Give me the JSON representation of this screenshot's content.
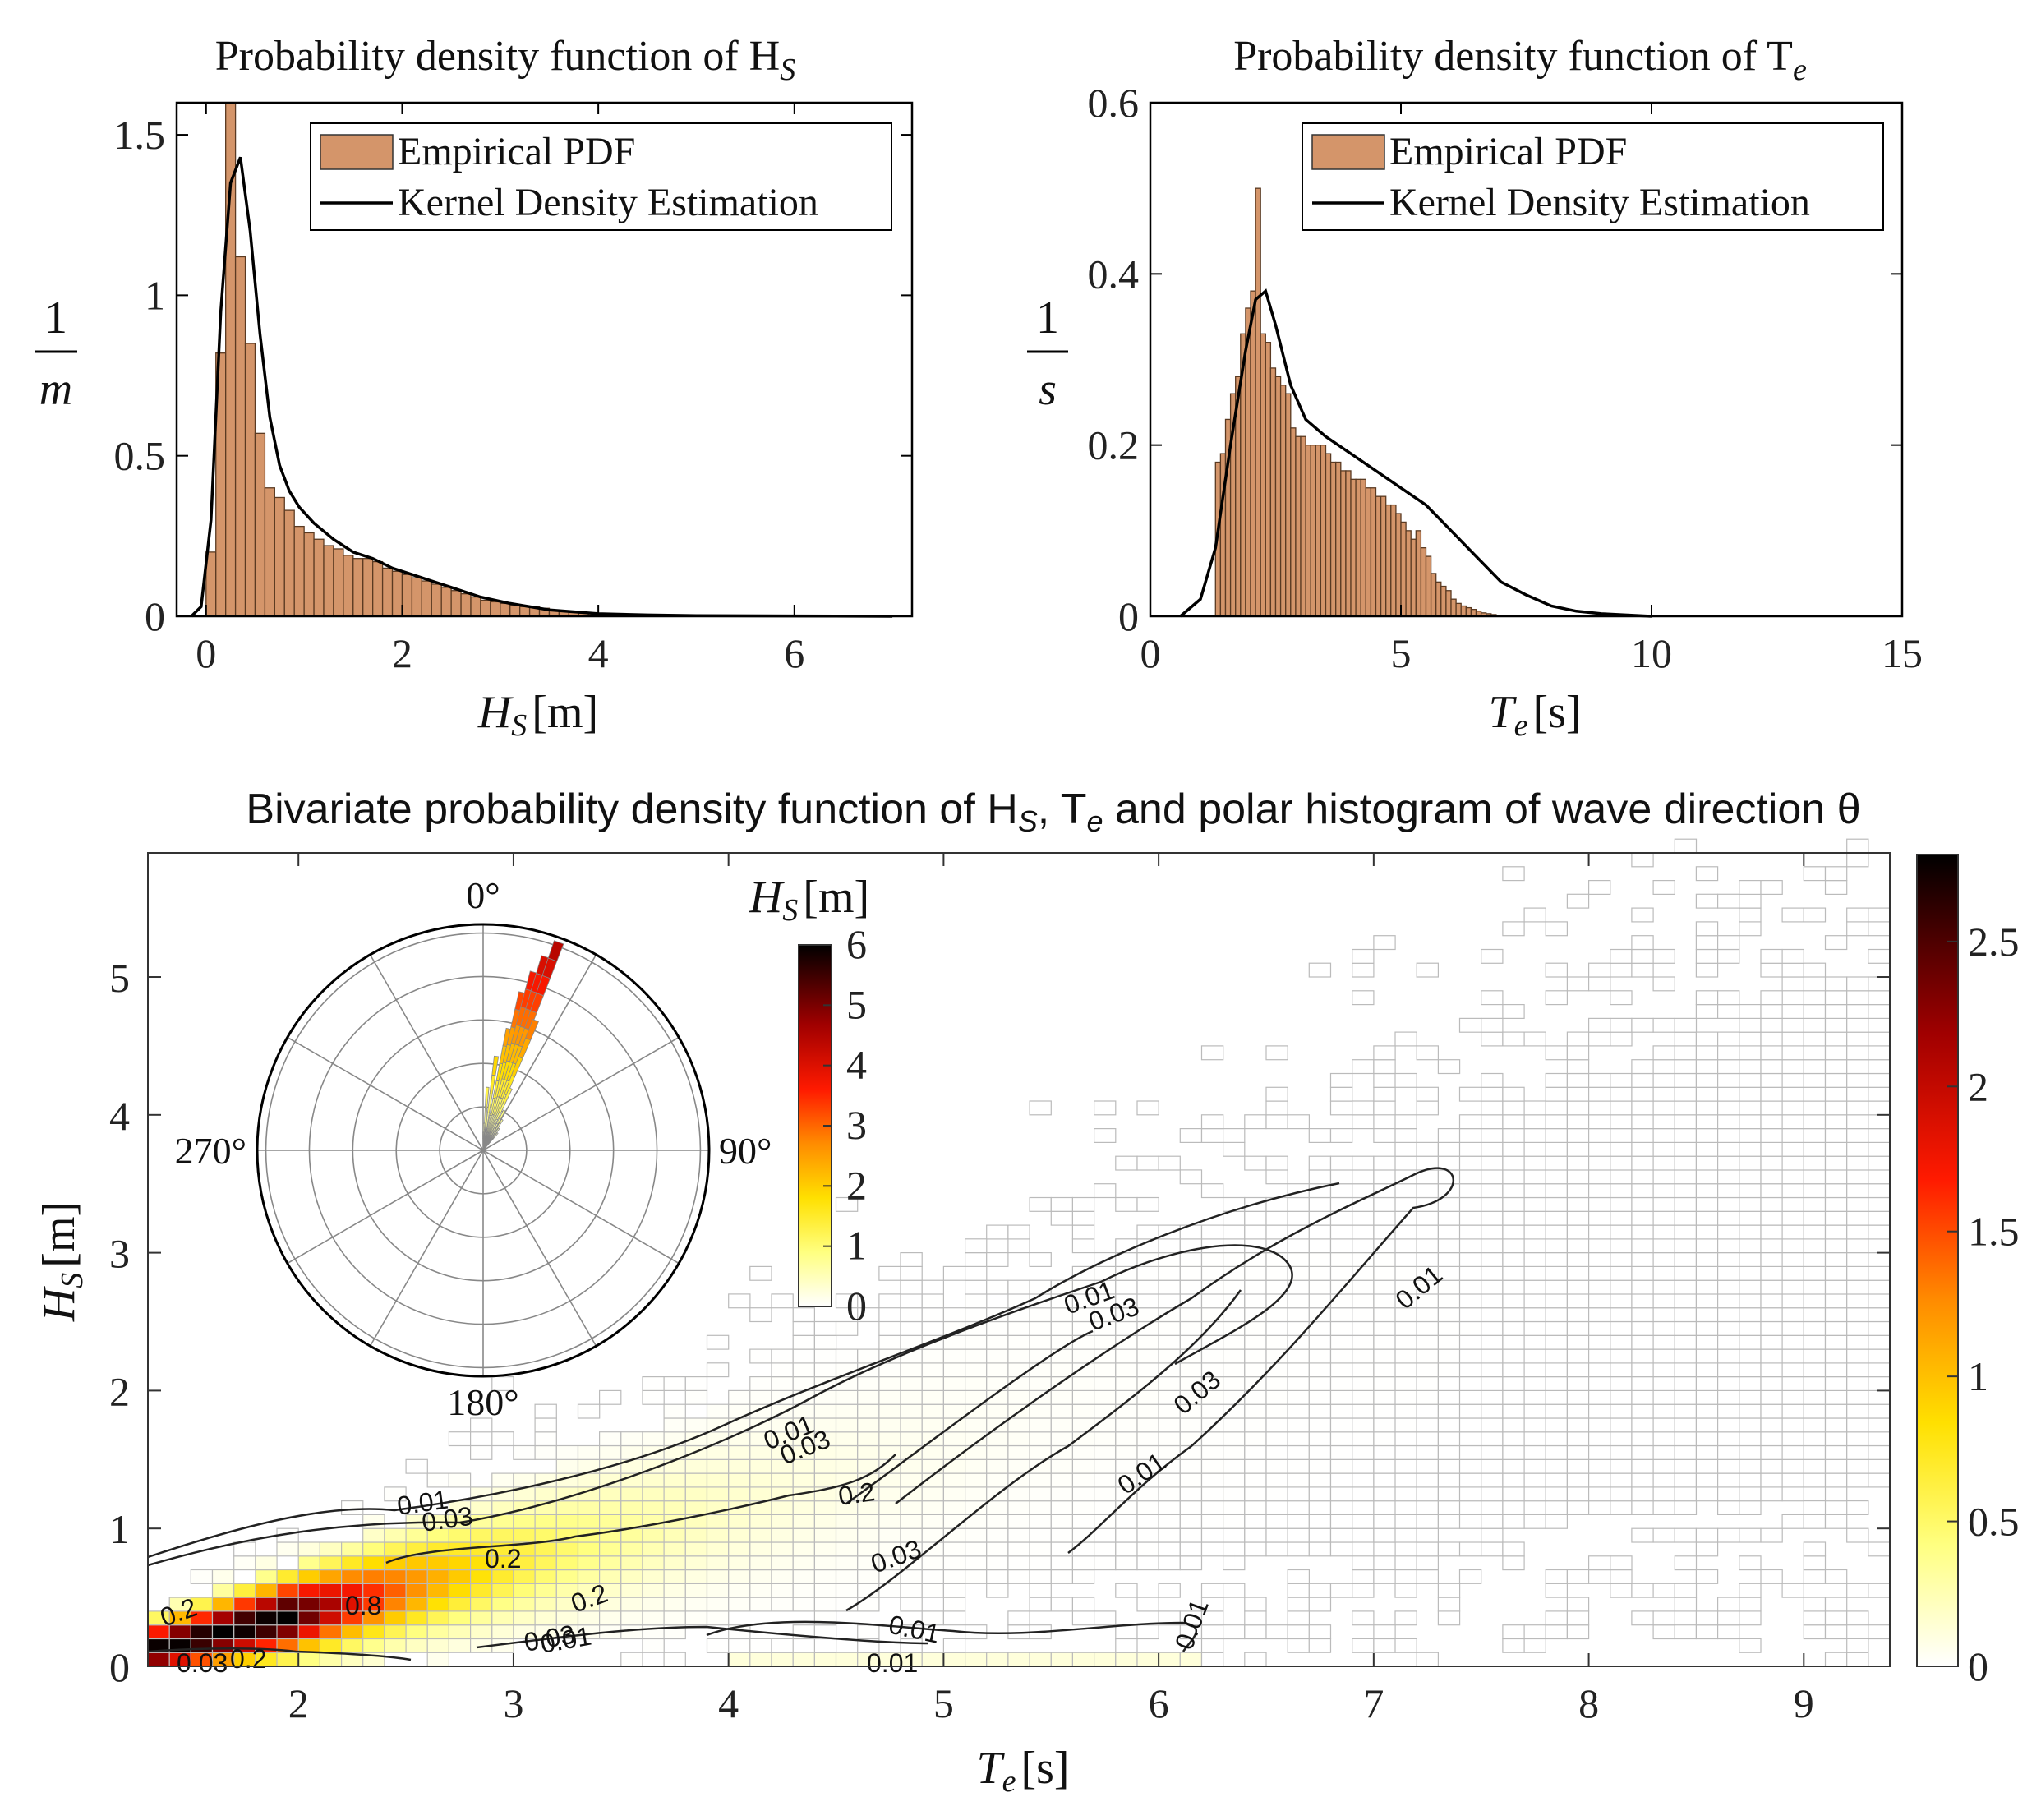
{
  "panel_hs": {
    "title": "Probability density function of H",
    "title_sub": "S",
    "ylabel_num": "1",
    "ylabel_den": "m",
    "xlabel_main": "H",
    "xlabel_sub": "S",
    "xlabel_unit": "[m]",
    "legend": {
      "hist": "Empirical PDF",
      "kde": "Kernel Density Estimation"
    },
    "yticks": [
      "0",
      "0.5",
      "1",
      "1.5"
    ],
    "xticks": [
      "0",
      "2",
      "4",
      "6"
    ]
  },
  "panel_te": {
    "title": "Probability density function of T",
    "title_sub": "e",
    "ylabel_num": "1",
    "ylabel_den": "s",
    "xlabel_main": "T",
    "xlabel_sub": "e",
    "xlabel_unit": "[s]",
    "legend": {
      "hist": "Empirical PDF",
      "kde": "Kernel Density Estimation"
    },
    "yticks": [
      "0",
      "0.2",
      "0.4",
      "0.6"
    ],
    "xticks": [
      "0",
      "5",
      "10",
      "15"
    ]
  },
  "panel_biv": {
    "title_a": "Bivariate probability density function of H",
    "title_b": "S",
    "title_c": ", T",
    "title_d": "e",
    "title_e": " and polar histogram of wave direction θ",
    "ylabel_main": "H",
    "ylabel_sub": "S",
    "ylabel_unit": "[m]",
    "xlabel_main": "T",
    "xlabel_sub": "e",
    "xlabel_unit": "[s]",
    "xticks": [
      "2",
      "3",
      "4",
      "5",
      "6",
      "7",
      "8",
      "9"
    ],
    "yticks": [
      "0",
      "1",
      "2",
      "3",
      "4",
      "5"
    ],
    "cbar_ticks": [
      "0",
      "0.5",
      "1",
      "1.5",
      "2",
      "2.5"
    ],
    "polar_labels": {
      "n": "0°",
      "e": "90°",
      "s": "180°",
      "w": "270°"
    },
    "polar_cbar_title_main": "H",
    "polar_cbar_title_sub": "S",
    "polar_cbar_title_unit": "[m]",
    "polar_cbar_ticks": [
      "0",
      "1",
      "2",
      "3",
      "4",
      "5",
      "6"
    ],
    "contour_labels": [
      "0.01",
      "0.03",
      "0.2",
      "0.8"
    ]
  },
  "colors": {
    "hist": "#d4956a",
    "kde": "#000000",
    "cmap": "hot (reversed)"
  },
  "chart_data": [
    {
      "type": "bar",
      "title": "Probability density function of H_S",
      "xlabel": "H_S [m]",
      "ylabel": "1/m",
      "xlim": [
        -0.3,
        7.2
      ],
      "ylim": [
        0,
        1.6
      ],
      "legend": "top-right",
      "bin_width": 0.1,
      "bin_start": 0.0,
      "values": [
        0.2,
        0.82,
        1.6,
        1.12,
        0.85,
        0.57,
        0.4,
        0.37,
        0.33,
        0.28,
        0.26,
        0.24,
        0.22,
        0.21,
        0.19,
        0.18,
        0.18,
        0.17,
        0.15,
        0.14,
        0.13,
        0.12,
        0.11,
        0.1,
        0.09,
        0.08,
        0.07,
        0.06,
        0.05,
        0.045,
        0.04,
        0.035,
        0.03,
        0.03,
        0.025,
        0.02,
        0.015,
        0.012,
        0.01,
        0.008,
        0.006,
        0.005,
        0.004,
        0.003,
        0.003,
        0.002,
        0.002,
        0.002,
        0.001,
        0.001
      ],
      "kde": {
        "x": [
          -0.15,
          -0.05,
          0.05,
          0.15,
          0.25,
          0.35,
          0.45,
          0.55,
          0.65,
          0.75,
          0.85,
          0.95,
          1.1,
          1.3,
          1.5,
          1.7,
          1.9,
          2.1,
          2.3,
          2.5,
          2.8,
          3.1,
          3.5,
          4.0,
          4.5,
          5.0,
          6.0,
          7.0
        ],
        "y": [
          0.0,
          0.03,
          0.3,
          0.95,
          1.35,
          1.43,
          1.2,
          0.88,
          0.62,
          0.47,
          0.39,
          0.34,
          0.29,
          0.24,
          0.2,
          0.18,
          0.15,
          0.13,
          0.11,
          0.09,
          0.06,
          0.04,
          0.02,
          0.008,
          0.004,
          0.002,
          0.001,
          0.0
        ]
      }
    },
    {
      "type": "bar",
      "title": "Probability density function of T_e",
      "xlabel": "T_e [s]",
      "ylabel": "1/s",
      "xlim": [
        0,
        15
      ],
      "ylim": [
        0,
        0.6
      ],
      "legend": "top-right",
      "bin_width": 0.1,
      "bin_start": 1.3,
      "values": [
        0.18,
        0.19,
        0.23,
        0.26,
        0.28,
        0.33,
        0.36,
        0.38,
        0.5,
        0.33,
        0.32,
        0.29,
        0.28,
        0.27,
        0.26,
        0.22,
        0.21,
        0.21,
        0.2,
        0.2,
        0.2,
        0.2,
        0.19,
        0.18,
        0.18,
        0.17,
        0.17,
        0.16,
        0.16,
        0.16,
        0.15,
        0.15,
        0.14,
        0.14,
        0.13,
        0.13,
        0.12,
        0.11,
        0.1,
        0.09,
        0.1,
        0.08,
        0.07,
        0.05,
        0.04,
        0.035,
        0.03,
        0.02,
        0.015,
        0.012,
        0.01,
        0.008,
        0.006,
        0.004,
        0.003,
        0.002,
        0.001
      ],
      "kde": {
        "x": [
          0.6,
          1.0,
          1.3,
          1.6,
          1.9,
          2.1,
          2.3,
          2.5,
          2.8,
          3.1,
          3.5,
          4.0,
          4.5,
          5.0,
          5.5,
          6.0,
          6.5,
          7.0,
          7.5,
          8.0,
          8.5,
          9.0,
          10.0
        ],
        "y": [
          0.0,
          0.02,
          0.08,
          0.2,
          0.31,
          0.37,
          0.38,
          0.34,
          0.27,
          0.23,
          0.21,
          0.19,
          0.17,
          0.15,
          0.13,
          0.1,
          0.07,
          0.04,
          0.025,
          0.012,
          0.006,
          0.003,
          0.0
        ]
      }
    },
    {
      "type": "heatmap",
      "title": "Bivariate probability density function of H_S, T_e and polar histogram of wave direction θ",
      "xlabel": "T_e [s]",
      "ylabel": "H_S [m]",
      "xlim": [
        1.3,
        9.4
      ],
      "ylim": [
        0,
        5.9
      ],
      "clim": [
        0,
        2.8
      ],
      "colormap": "hot reversed",
      "contour_levels": [
        0.01,
        0.03,
        0.2,
        0.8
      ],
      "polar_histogram": {
        "labels": [
          "0°",
          "90°",
          "180°",
          "270°"
        ],
        "dominant_direction_deg": 15,
        "clim": [
          0,
          6
        ]
      }
    }
  ]
}
